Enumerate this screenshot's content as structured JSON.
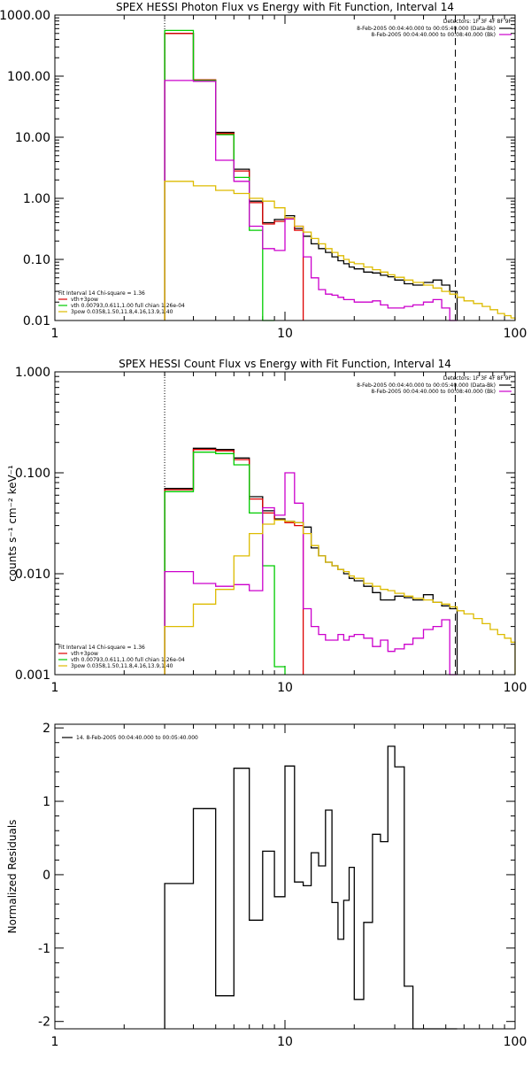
{
  "chart_data": [
    {
      "type": "line",
      "title": "SPEX HESSI Photon Flux vs Energy with Fit Function, Interval 14",
      "xlim": [
        1,
        100
      ],
      "ylim": [
        0.01,
        1000
      ],
      "xscale": "log",
      "yscale": "log",
      "x_ticks": [
        {
          "v": 1,
          "label": "1"
        },
        {
          "v": 10,
          "label": "10"
        },
        {
          "v": 100,
          "label": "100"
        }
      ],
      "y_ticks": [
        {
          "v": 1000,
          "label": "1000.00"
        },
        {
          "v": 100,
          "label": "100.00"
        },
        {
          "v": 10,
          "label": "10.00"
        },
        {
          "v": 1,
          "label": "1.00"
        },
        {
          "v": 0.1,
          "label": "0.10"
        },
        {
          "v": 0.01,
          "label": "0.01"
        }
      ],
      "vlines": [
        {
          "x": 3,
          "style": "dotted"
        },
        {
          "x": 55,
          "style": "dashed"
        }
      ],
      "legend_top": {
        "header": "Detectors: 1F 3F 4F 8F 9F",
        "items": [
          {
            "label": "8-Feb-2005 00:04:40.000 to 00:05:40.000 (Data-Bk)",
            "color": "#000000"
          },
          {
            "label": "8-Feb-2005 00:04:40.000 to 00:08:40.000 (Bk)",
            "color": "#cc00cc"
          }
        ]
      },
      "legend_bottom": {
        "header": "Fit Interval 14   Chi-square = 1.36",
        "items": [
          {
            "label": "vth+3pow",
            "color": "#dd0000"
          },
          {
            "label": "vth 0.00793,0.611,1.00   full chian 1.26e-04",
            "color": "#00cc00"
          },
          {
            "label": "3pow 0.0358,1.50,11.8,4.16,13.9,1.40",
            "color": "#ddbb00"
          }
        ]
      },
      "series": [
        {
          "color": "#000000",
          "edges": [
            3,
            4,
            5,
            6,
            7,
            8,
            9,
            10,
            11,
            12,
            13,
            14,
            15,
            16,
            17,
            18,
            19,
            20,
            22,
            24,
            26,
            28,
            30,
            33,
            36,
            40,
            44,
            48,
            52,
            56
          ],
          "values": [
            500,
            85,
            12,
            3,
            0.9,
            0.4,
            0.45,
            0.52,
            0.32,
            0.24,
            0.18,
            0.15,
            0.13,
            0.11,
            0.095,
            0.085,
            0.075,
            0.07,
            0.062,
            0.06,
            0.055,
            0.052,
            0.046,
            0.04,
            0.038,
            0.042,
            0.046,
            0.038,
            0.03
          ]
        },
        {
          "color": "#dd0000",
          "edges": [
            3,
            4,
            5,
            6,
            7,
            8,
            9,
            10,
            11,
            12
          ],
          "values": [
            500,
            87,
            11.5,
            2.8,
            0.85,
            0.38,
            0.42,
            0.48,
            0.3
          ]
        },
        {
          "color": "#00cc00",
          "edges": [
            3,
            4,
            5,
            6,
            7,
            8,
            9
          ],
          "values": [
            560,
            85,
            11,
            2.2,
            0.3,
            0.01
          ]
        },
        {
          "color": "#cc00cc",
          "edges": [
            3,
            4,
            5,
            6,
            7,
            8,
            9,
            10,
            11,
            12,
            13,
            14,
            15,
            16,
            17,
            18,
            19,
            20,
            22,
            24,
            26,
            28,
            30,
            33,
            36,
            40,
            44,
            48,
            52,
            56
          ],
          "values": [
            85,
            82,
            4.2,
            1.9,
            0.35,
            0.15,
            0.14,
            0.46,
            0.35,
            0.11,
            0.05,
            0.032,
            0.027,
            0.026,
            0.024,
            0.022,
            0.022,
            0.02,
            0.02,
            0.021,
            0.018,
            0.016,
            0.016,
            0.017,
            0.018,
            0.02,
            0.022,
            0.016,
            0.009
          ]
        },
        {
          "color": "#ddbb00",
          "edges": [
            3,
            4,
            5,
            6,
            7,
            8,
            9,
            10,
            11,
            12,
            13,
            14,
            15,
            16,
            17,
            18,
            19,
            20,
            22,
            24,
            26,
            28,
            30,
            33,
            36,
            40,
            44,
            48,
            52,
            56,
            60,
            66,
            72,
            78,
            84,
            90,
            96,
            100
          ],
          "values": [
            1.9,
            1.6,
            1.35,
            1.2,
            1.0,
            0.9,
            0.7,
            0.48,
            0.35,
            0.28,
            0.22,
            0.18,
            0.15,
            0.13,
            0.115,
            0.1,
            0.09,
            0.085,
            0.075,
            0.068,
            0.062,
            0.056,
            0.051,
            0.046,
            0.042,
            0.038,
            0.034,
            0.03,
            0.027,
            0.024,
            0.021,
            0.019,
            0.017,
            0.015,
            0.013,
            0.012,
            0.011
          ]
        }
      ]
    },
    {
      "type": "line",
      "title": "SPEX HESSI Count Flux vs Energy with Fit Function, Interval 14",
      "ylabel": "counts s⁻¹ cm⁻² keV⁻¹",
      "xlim": [
        1,
        100
      ],
      "ylim": [
        0.001,
        1
      ],
      "xscale": "log",
      "yscale": "log",
      "x_ticks": [
        {
          "v": 1,
          "label": "1"
        },
        {
          "v": 10,
          "label": "10"
        },
        {
          "v": 100,
          "label": "100"
        }
      ],
      "y_ticks": [
        {
          "v": 1,
          "label": "1.000"
        },
        {
          "v": 0.1,
          "label": "0.100"
        },
        {
          "v": 0.01,
          "label": "0.010"
        },
        {
          "v": 0.001,
          "label": "0.001"
        }
      ],
      "vlines": [
        {
          "x": 3,
          "style": "dotted"
        },
        {
          "x": 55,
          "style": "dashed"
        }
      ],
      "legend_top": {
        "header": "Detectors: 1F 3F 4F 8F 9F",
        "items": [
          {
            "label": "8-Feb-2005 00:04:40.000 to 00:05:40.000 (Data-Bk)",
            "color": "#000000"
          },
          {
            "label": "8-Feb-2005 00:04:40.000 to 00:08:40.000 (Bk)",
            "color": "#cc00cc"
          }
        ]
      },
      "legend_bottom": {
        "header": "Fit Interval 14   Chi-square = 1.36",
        "items": [
          {
            "label": "vth+3pow",
            "color": "#dd0000"
          },
          {
            "label": "vth 0.00793,0.611,1.00   full chian 1.26e-04",
            "color": "#00cc00"
          },
          {
            "label": "3pow 0.0358,1.50,11.8,4.16,13.9,1.40",
            "color": "#ddbb00"
          }
        ]
      },
      "series": [
        {
          "color": "#000000",
          "edges": [
            3,
            4,
            5,
            6,
            7,
            8,
            9,
            10,
            11,
            12,
            13,
            14,
            15,
            16,
            17,
            18,
            19,
            20,
            22,
            24,
            26,
            28,
            30,
            33,
            36,
            40,
            44,
            48,
            52,
            56
          ],
          "values": [
            0.07,
            0.175,
            0.17,
            0.14,
            0.058,
            0.042,
            0.035,
            0.033,
            0.032,
            0.029,
            0.018,
            0.015,
            0.013,
            0.012,
            0.011,
            0.01,
            0.009,
            0.0085,
            0.0075,
            0.0065,
            0.0055,
            0.0055,
            0.006,
            0.0058,
            0.0055,
            0.0062,
            0.0052,
            0.0048,
            0.0045
          ]
        },
        {
          "color": "#dd0000",
          "edges": [
            3,
            4,
            5,
            6,
            7,
            8,
            9,
            10,
            11,
            12
          ],
          "values": [
            0.068,
            0.17,
            0.165,
            0.135,
            0.055,
            0.04,
            0.034,
            0.032,
            0.03
          ]
        },
        {
          "color": "#00cc00",
          "edges": [
            3,
            4,
            5,
            6,
            7,
            8,
            9,
            10
          ],
          "values": [
            0.065,
            0.16,
            0.155,
            0.12,
            0.04,
            0.012,
            0.0012
          ]
        },
        {
          "color": "#cc00cc",
          "edges": [
            3,
            4,
            5,
            6,
            7,
            8,
            9,
            10,
            11,
            12,
            13,
            14,
            15,
            16,
            17,
            18,
            19,
            20,
            22,
            24,
            26,
            28,
            30,
            33,
            36,
            40,
            44,
            48,
            52,
            56
          ],
          "values": [
            0.0105,
            0.008,
            0.0075,
            0.0078,
            0.0068,
            0.045,
            0.038,
            0.1,
            0.05,
            0.0045,
            0.003,
            0.0025,
            0.0022,
            0.0022,
            0.0025,
            0.0022,
            0.0024,
            0.0025,
            0.0023,
            0.0019,
            0.0022,
            0.0017,
            0.0018,
            0.002,
            0.0023,
            0.0028,
            0.003,
            0.0035,
            0.001
          ]
        },
        {
          "color": "#ddbb00",
          "edges": [
            3,
            4,
            5,
            6,
            7,
            8,
            9,
            10,
            11,
            12,
            13,
            14,
            15,
            16,
            17,
            18,
            19,
            20,
            22,
            24,
            26,
            28,
            30,
            33,
            36,
            40,
            44,
            48,
            52,
            56,
            60,
            66,
            72,
            78,
            84,
            90,
            96,
            100
          ],
          "values": [
            0.003,
            0.005,
            0.007,
            0.015,
            0.025,
            0.031,
            0.034,
            0.033,
            0.032,
            0.025,
            0.019,
            0.015,
            0.013,
            0.012,
            0.011,
            0.0105,
            0.0095,
            0.009,
            0.008,
            0.0075,
            0.007,
            0.0068,
            0.0064,
            0.006,
            0.0057,
            0.0055,
            0.0052,
            0.005,
            0.0047,
            0.0043,
            0.004,
            0.0036,
            0.0032,
            0.0028,
            0.0025,
            0.0023,
            0.0021
          ]
        }
      ]
    },
    {
      "type": "line",
      "title": "",
      "ylabel": "Normalized Residuals",
      "xlim": [
        1,
        100
      ],
      "ylim": [
        -2.1,
        2.05
      ],
      "xscale": "log",
      "yscale": "linear",
      "x_ticks": [
        {
          "v": 1,
          "label": "1"
        },
        {
          "v": 10,
          "label": "10"
        },
        {
          "v": 100,
          "label": "100"
        }
      ],
      "y_ticks": [
        {
          "v": 2,
          "label": "2"
        },
        {
          "v": 1,
          "label": "1"
        },
        {
          "v": 0,
          "label": "0"
        },
        {
          "v": -1,
          "label": "-1"
        },
        {
          "v": -2,
          "label": "-2"
        }
      ],
      "vlines": [],
      "legend_top": {
        "header": "",
        "items": [
          {
            "label": "14.  8-Feb-2005 00:04:40.000 to 00:05:40.000",
            "color": "#000000"
          }
        ]
      },
      "legend_bottom": {
        "header": "",
        "items": []
      },
      "series": [
        {
          "color": "#000000",
          "edges": [
            3,
            4,
            5,
            6,
            7,
            8,
            9,
            10,
            11,
            12,
            13,
            14,
            15,
            16,
            17,
            18,
            19,
            20,
            22,
            24,
            26,
            28,
            30,
            33,
            36,
            40,
            44,
            48,
            52,
            56
          ],
          "values": [
            -0.12,
            0.9,
            -1.65,
            1.45,
            -0.62,
            0.32,
            -0.3,
            1.48,
            -0.1,
            -0.15,
            0.3,
            0.12,
            0.88,
            -0.38,
            -0.88,
            -0.35,
            0.1,
            -1.7,
            -0.65,
            0.55,
            0.45,
            1.75,
            1.47,
            -1.52,
            -2.1,
            -2.1,
            -2.1,
            -2.1,
            -2.1
          ]
        }
      ]
    }
  ]
}
